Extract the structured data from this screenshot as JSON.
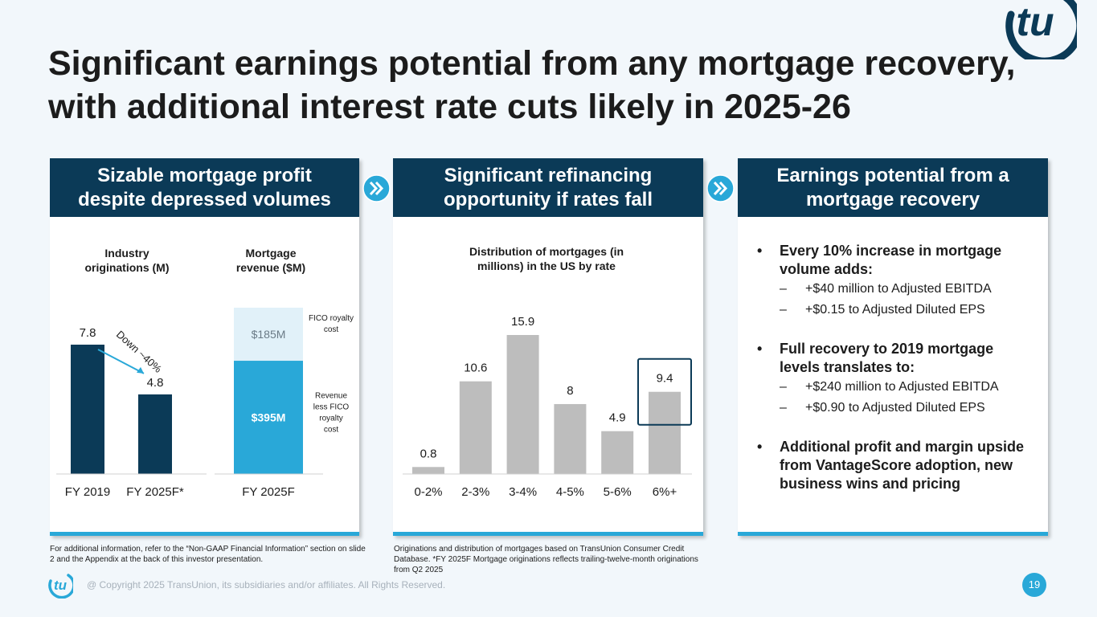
{
  "slide": {
    "title_line1": "Significant earnings potential from any mortgage recovery,",
    "title_line2": "with additional interest rate cuts likely in 2025-26",
    "page_number": "19",
    "copyright": "@ Copyright 2025 TransUnion, its subsidiaries and/or affiliates.  All Rights Reserved.",
    "logo_icon": "transunion-tu-logo",
    "colors": {
      "navy": "#0b3a57",
      "accent": "#29a8d8",
      "gray_bar": "#bdbdbd",
      "light_bar": "#e1f1f9"
    }
  },
  "panels": [
    {
      "header_line1": "Sizable mortgage profit",
      "header_line2": "despite depressed volumes"
    },
    {
      "header_line1": "Significant refinancing",
      "header_line2": "opportunity if rates fall"
    },
    {
      "header_line1": "Earnings potential from a",
      "header_line2": "mortgage recovery"
    }
  ],
  "chart_data": [
    {
      "type": "bar",
      "title": "Industry originations (M)",
      "title_lines": [
        "Industry",
        "originations (M)"
      ],
      "categories": [
        "FY 2019",
        "FY 2025F*"
      ],
      "values": [
        7.8,
        4.8
      ],
      "value_labels": [
        "7.8",
        "4.8"
      ],
      "annotation": "Down ~40%",
      "color": "#0b3a57"
    },
    {
      "type": "bar",
      "stacked": true,
      "title": "Mortgage revenue ($M)",
      "title_lines": [
        "Mortgage",
        "revenue ($M)"
      ],
      "categories": [
        "FY 2025F"
      ],
      "series": [
        {
          "name": "Revenue less FICO royalty cost",
          "name_lines": [
            "Revenue",
            "less FICO",
            "royalty",
            "cost"
          ],
          "values": [
            395
          ],
          "label": "$395M",
          "color": "#29a8d8"
        },
        {
          "name": "FICO royalty cost",
          "name_lines": [
            "FICO royalty",
            "cost"
          ],
          "values": [
            185
          ],
          "label": "$185M",
          "color": "#e1f1f9"
        }
      ]
    },
    {
      "type": "bar",
      "title": "Distribution of mortgages (in millions) in the US by rate",
      "title_lines": [
        "Distribution of mortgages (in",
        "millions) in the US by rate"
      ],
      "categories": [
        "0-2%",
        "2-3%",
        "3-4%",
        "4-5%",
        "5-6%",
        "6%+"
      ],
      "values": [
        0.8,
        10.6,
        15.9,
        8,
        4.9,
        9.4
      ],
      "value_labels": [
        "0.8",
        "10.6",
        "15.9",
        "8",
        "4.9",
        "9.4"
      ],
      "highlighted_category": "6%+",
      "color": "#bdbdbd"
    }
  ],
  "earnings": {
    "b1": "Every 10% increase in mortgage volume adds:",
    "b1_s1": "+$40 million to Adjusted EBITDA",
    "b1_s2": "+$0.15 to Adjusted Diluted EPS",
    "b2": "Full recovery to 2019 mortgage levels translates to:",
    "b2_s1": "+$240 million to Adjusted EBITDA",
    "b2_s2": "+$0.90 to Adjusted Diluted EPS",
    "b3": "Additional profit and margin upside from VantageScore adoption, new business wins and pricing",
    "bullet_marker": "•",
    "sub_marker": "–"
  },
  "footnotes": {
    "left": "For additional information, refer to the “Non-GAAP Financial Information” section on slide 2 and the Appendix at the back of this investor presentation.",
    "right": "Originations and distribution of mortgages based on TransUnion Consumer Credit Database. *FY 2025F Mortgage originations reflects trailing-twelve-month originations from Q2 2025"
  }
}
